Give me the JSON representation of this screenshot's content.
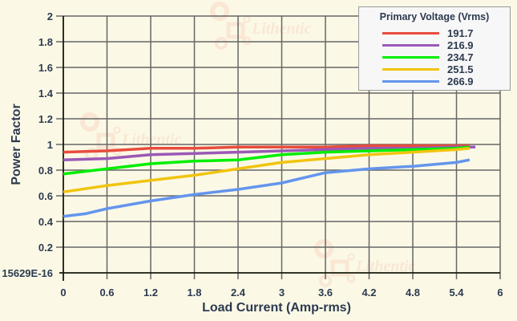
{
  "chart_data": {
    "type": "line",
    "title": "",
    "xlabel": "Load Current (Amp-rms)",
    "ylabel": "Power Factor",
    "xlim": [
      0,
      6
    ],
    "ylim": [
      0,
      2
    ],
    "x_ticks": [
      "0",
      "0.6",
      "1.2",
      "1.8",
      "2.4",
      "3",
      "3.6",
      "4.2",
      "4.8",
      "5.4",
      "6"
    ],
    "y_ticks": [
      "15629E-16",
      "0.2",
      "0.4",
      "0.6",
      "0.8",
      "1",
      "1.2",
      "1.4",
      "1.6",
      "1.8",
      "2"
    ],
    "grid": true,
    "legend_position": "top-right",
    "legend_title": "Primary Voltage (Vrms)",
    "series": [
      {
        "name": "191.7",
        "color": "#e84c3d",
        "x": [
          0,
          0.6,
          1.2,
          1.8,
          2.4,
          3,
          3.6,
          4.2,
          4.8,
          5.4,
          5.58
        ],
        "values": [
          0.94,
          0.95,
          0.97,
          0.97,
          0.98,
          0.98,
          0.98,
          0.99,
          0.99,
          0.99,
          0.99
        ]
      },
      {
        "name": "216.9",
        "color": "#9b59b6",
        "x": [
          0,
          0.6,
          1.2,
          1.8,
          2.4,
          3,
          3.6,
          4.2,
          4.8,
          5.4,
          5.66
        ],
        "values": [
          0.88,
          0.89,
          0.92,
          0.93,
          0.94,
          0.95,
          0.96,
          0.97,
          0.97,
          0.98,
          0.98
        ]
      },
      {
        "name": "234.7",
        "color": "#00ee00",
        "x": [
          0,
          0.6,
          1.2,
          1.8,
          2.4,
          3,
          3.6,
          4.2,
          4.8,
          5.4,
          5.58
        ],
        "values": [
          0.77,
          0.81,
          0.85,
          0.87,
          0.88,
          0.92,
          0.94,
          0.95,
          0.96,
          0.97,
          0.98
        ]
      },
      {
        "name": "251.5",
        "color": "#f1c40f",
        "x": [
          0,
          0.6,
          1.2,
          1.8,
          2.4,
          3,
          3.6,
          4.2,
          4.8,
          5.4,
          5.58
        ],
        "values": [
          0.63,
          0.68,
          0.72,
          0.76,
          0.81,
          0.86,
          0.89,
          0.92,
          0.94,
          0.96,
          0.97
        ]
      },
      {
        "name": "266.9",
        "color": "#6495ed",
        "x": [
          0,
          0.3,
          0.6,
          1.2,
          1.8,
          2.4,
          3,
          3.6,
          4.2,
          4.8,
          5.4,
          5.58
        ],
        "values": [
          0.44,
          0.46,
          0.5,
          0.56,
          0.61,
          0.65,
          0.7,
          0.78,
          0.81,
          0.83,
          0.86,
          0.88
        ]
      }
    ]
  },
  "watermark": "Lithentic"
}
